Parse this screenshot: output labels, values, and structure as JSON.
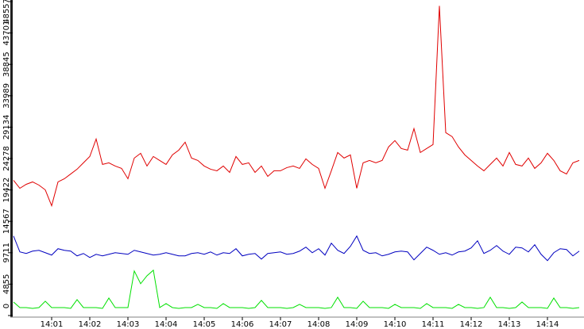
{
  "chart_data": {
    "type": "line",
    "categories": [
      null,
      null,
      null,
      null,
      null,
      null,
      "14:01",
      null,
      null,
      null,
      null,
      null,
      "14:02",
      null,
      null,
      null,
      null,
      null,
      "14:03",
      null,
      null,
      null,
      null,
      null,
      "14:04",
      null,
      null,
      null,
      null,
      null,
      "14:05",
      null,
      null,
      null,
      null,
      null,
      "14:06",
      null,
      null,
      null,
      null,
      null,
      "14:07",
      null,
      null,
      null,
      null,
      null,
      "14:08",
      null,
      null,
      null,
      null,
      null,
      "14:09",
      null,
      null,
      null,
      null,
      null,
      "14:10",
      null,
      null,
      null,
      null,
      null,
      "14:11",
      null,
      null,
      null,
      null,
      null,
      "14:12",
      null,
      null,
      null,
      null,
      null,
      "14:13",
      null,
      null,
      null,
      null,
      null,
      "14:14",
      null,
      null,
      null,
      null,
      null
    ],
    "series": [
      {
        "color": "#e00000",
        "values": [
          20910,
          19680,
          20295,
          20664,
          20172,
          19434,
          16974,
          20664,
          21156,
          21894,
          22632,
          23616,
          24600,
          27306,
          23370,
          23616,
          23124,
          22755,
          21156,
          24354,
          25092,
          23124,
          24600,
          23985,
          23370,
          24846,
          25584,
          26814,
          24354,
          23985,
          23124,
          22632,
          22386,
          23124,
          22140,
          24600,
          23370,
          23616,
          22140,
          23124,
          21525,
          22386,
          22386,
          22878,
          23124,
          22755,
          24231,
          23370,
          22755,
          19680,
          22386,
          25215,
          24354,
          24846,
          19680,
          23616,
          23985,
          23616,
          23985,
          26076,
          27060,
          25830,
          25584,
          28905,
          25215,
          25830,
          26445,
          47900,
          28290,
          27675,
          26076,
          24846,
          23985,
          23124,
          22386,
          23370,
          24354,
          23124,
          25215,
          23370,
          23124,
          24354,
          22755,
          23616,
          25092,
          23985,
          22386,
          21894,
          23616,
          23985
        ]
      },
      {
        "color": "#0000c0",
        "values": [
          12300,
          9840,
          9594,
          9963,
          10086,
          9717,
          9348,
          10332,
          10086,
          9963,
          9225,
          9594,
          8979,
          9471,
          9225,
          9471,
          9717,
          9594,
          9471,
          10086,
          9840,
          9594,
          9348,
          9471,
          9717,
          9471,
          9225,
          9225,
          9594,
          9717,
          9471,
          9840,
          9348,
          9717,
          9594,
          10332,
          9225,
          9471,
          9594,
          8733,
          9594,
          9717,
          9840,
          9471,
          9594,
          9963,
          10578,
          9717,
          10332,
          9348,
          11193,
          10086,
          9594,
          10700,
          12300,
          10086,
          9594,
          9717,
          9225,
          9471,
          9840,
          9963,
          9840,
          8610,
          9594,
          10578,
          10086,
          9471,
          9717,
          9348,
          9840,
          9963,
          10455,
          11562,
          9594,
          10086,
          10824,
          9963,
          9471,
          10578,
          10455,
          9840,
          10947,
          9471,
          8487,
          9717,
          10332,
          10209,
          9225,
          9963
        ]
      },
      {
        "color": "#00e000",
        "values": [
          2091,
          1230,
          1230,
          1107,
          1230,
          2214,
          1230,
          1230,
          1230,
          1107,
          2460,
          1230,
          1230,
          1230,
          1107,
          2706,
          1230,
          1230,
          1230,
          6888,
          4920,
          6150,
          7011,
          1230,
          1845,
          1230,
          1107,
          1230,
          1230,
          1722,
          1230,
          1230,
          1107,
          1845,
          1230,
          1230,
          1230,
          1107,
          1230,
          2337,
          1230,
          1230,
          1230,
          1107,
          1230,
          1722,
          1230,
          1230,
          1230,
          1107,
          1230,
          2829,
          1230,
          1230,
          1107,
          2214,
          1230,
          1230,
          1230,
          1107,
          1722,
          1230,
          1230,
          1230,
          1107,
          1845,
          1230,
          1230,
          1230,
          1107,
          1722,
          1230,
          1230,
          1107,
          1230,
          2829,
          1230,
          1230,
          1107,
          1230,
          2091,
          1230,
          1230,
          1230,
          1107,
          2706,
          1230,
          1230,
          1107,
          1230
        ]
      }
    ],
    "ylim": [
      0,
      48557
    ],
    "yticks": [
      0,
      4855,
      9711,
      14567,
      19422,
      24278,
      29134,
      33989,
      38845,
      43701,
      48557
    ],
    "grid": false
  }
}
